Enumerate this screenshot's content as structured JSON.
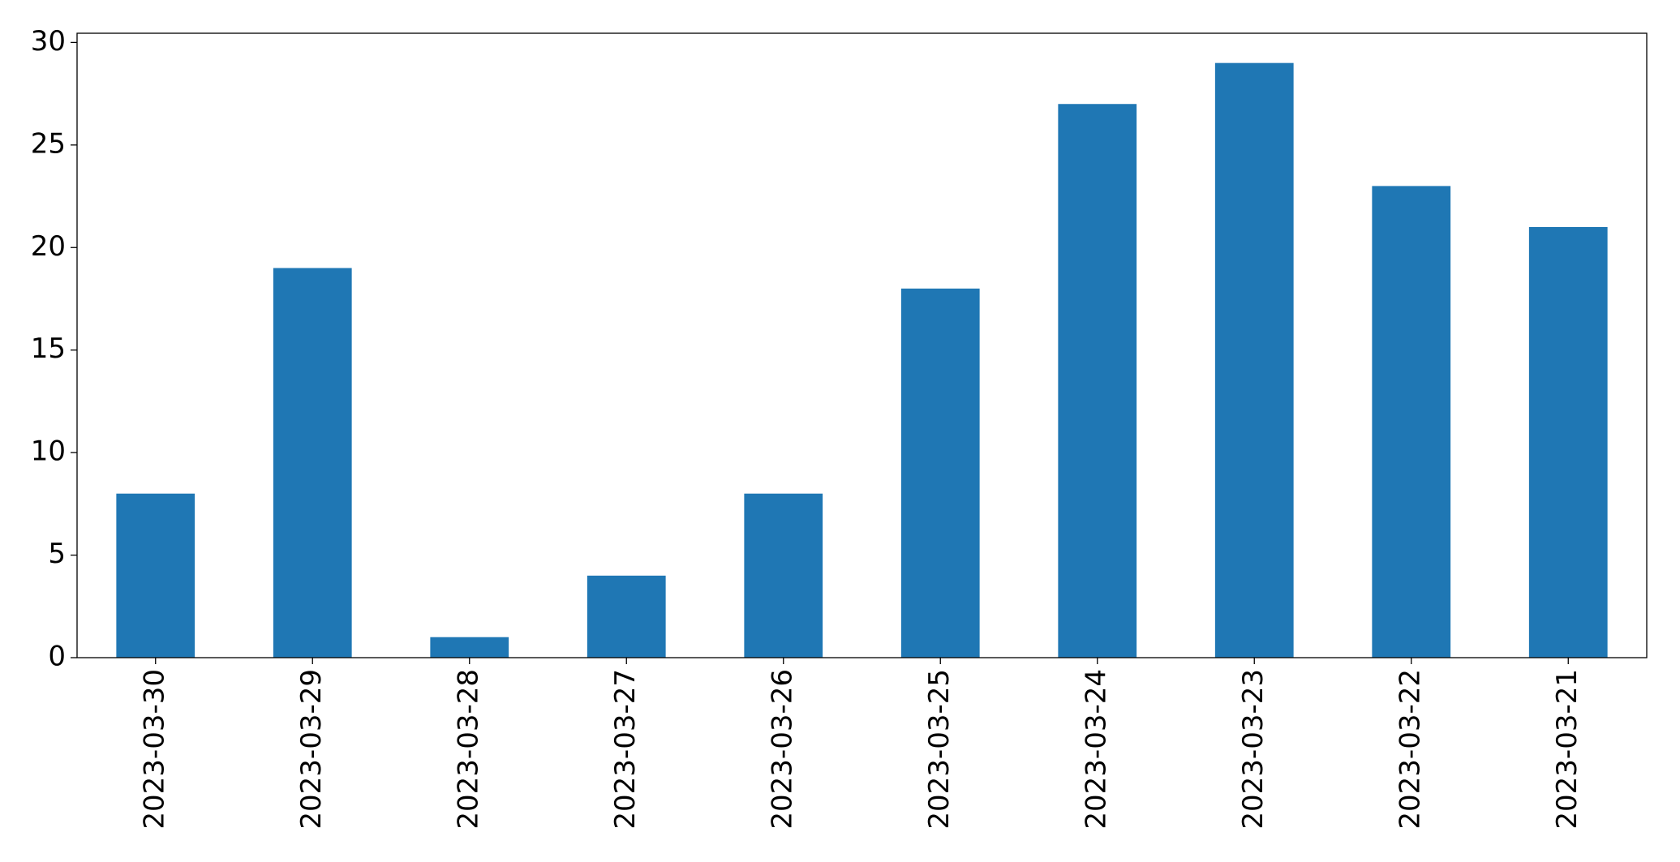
{
  "chart_data": {
    "type": "bar",
    "categories": [
      "2023-03-30",
      "2023-03-29",
      "2023-03-28",
      "2023-03-27",
      "2023-03-26",
      "2023-03-25",
      "2023-03-24",
      "2023-03-23",
      "2023-03-22",
      "2023-03-21"
    ],
    "values": [
      8,
      19,
      1,
      4,
      8,
      18,
      27,
      29,
      23,
      21
    ],
    "color": "#1f77b4",
    "ylim": [
      0,
      30.45
    ],
    "yticks": [
      0,
      5,
      10,
      15,
      20,
      25,
      30
    ],
    "grid": false
  }
}
